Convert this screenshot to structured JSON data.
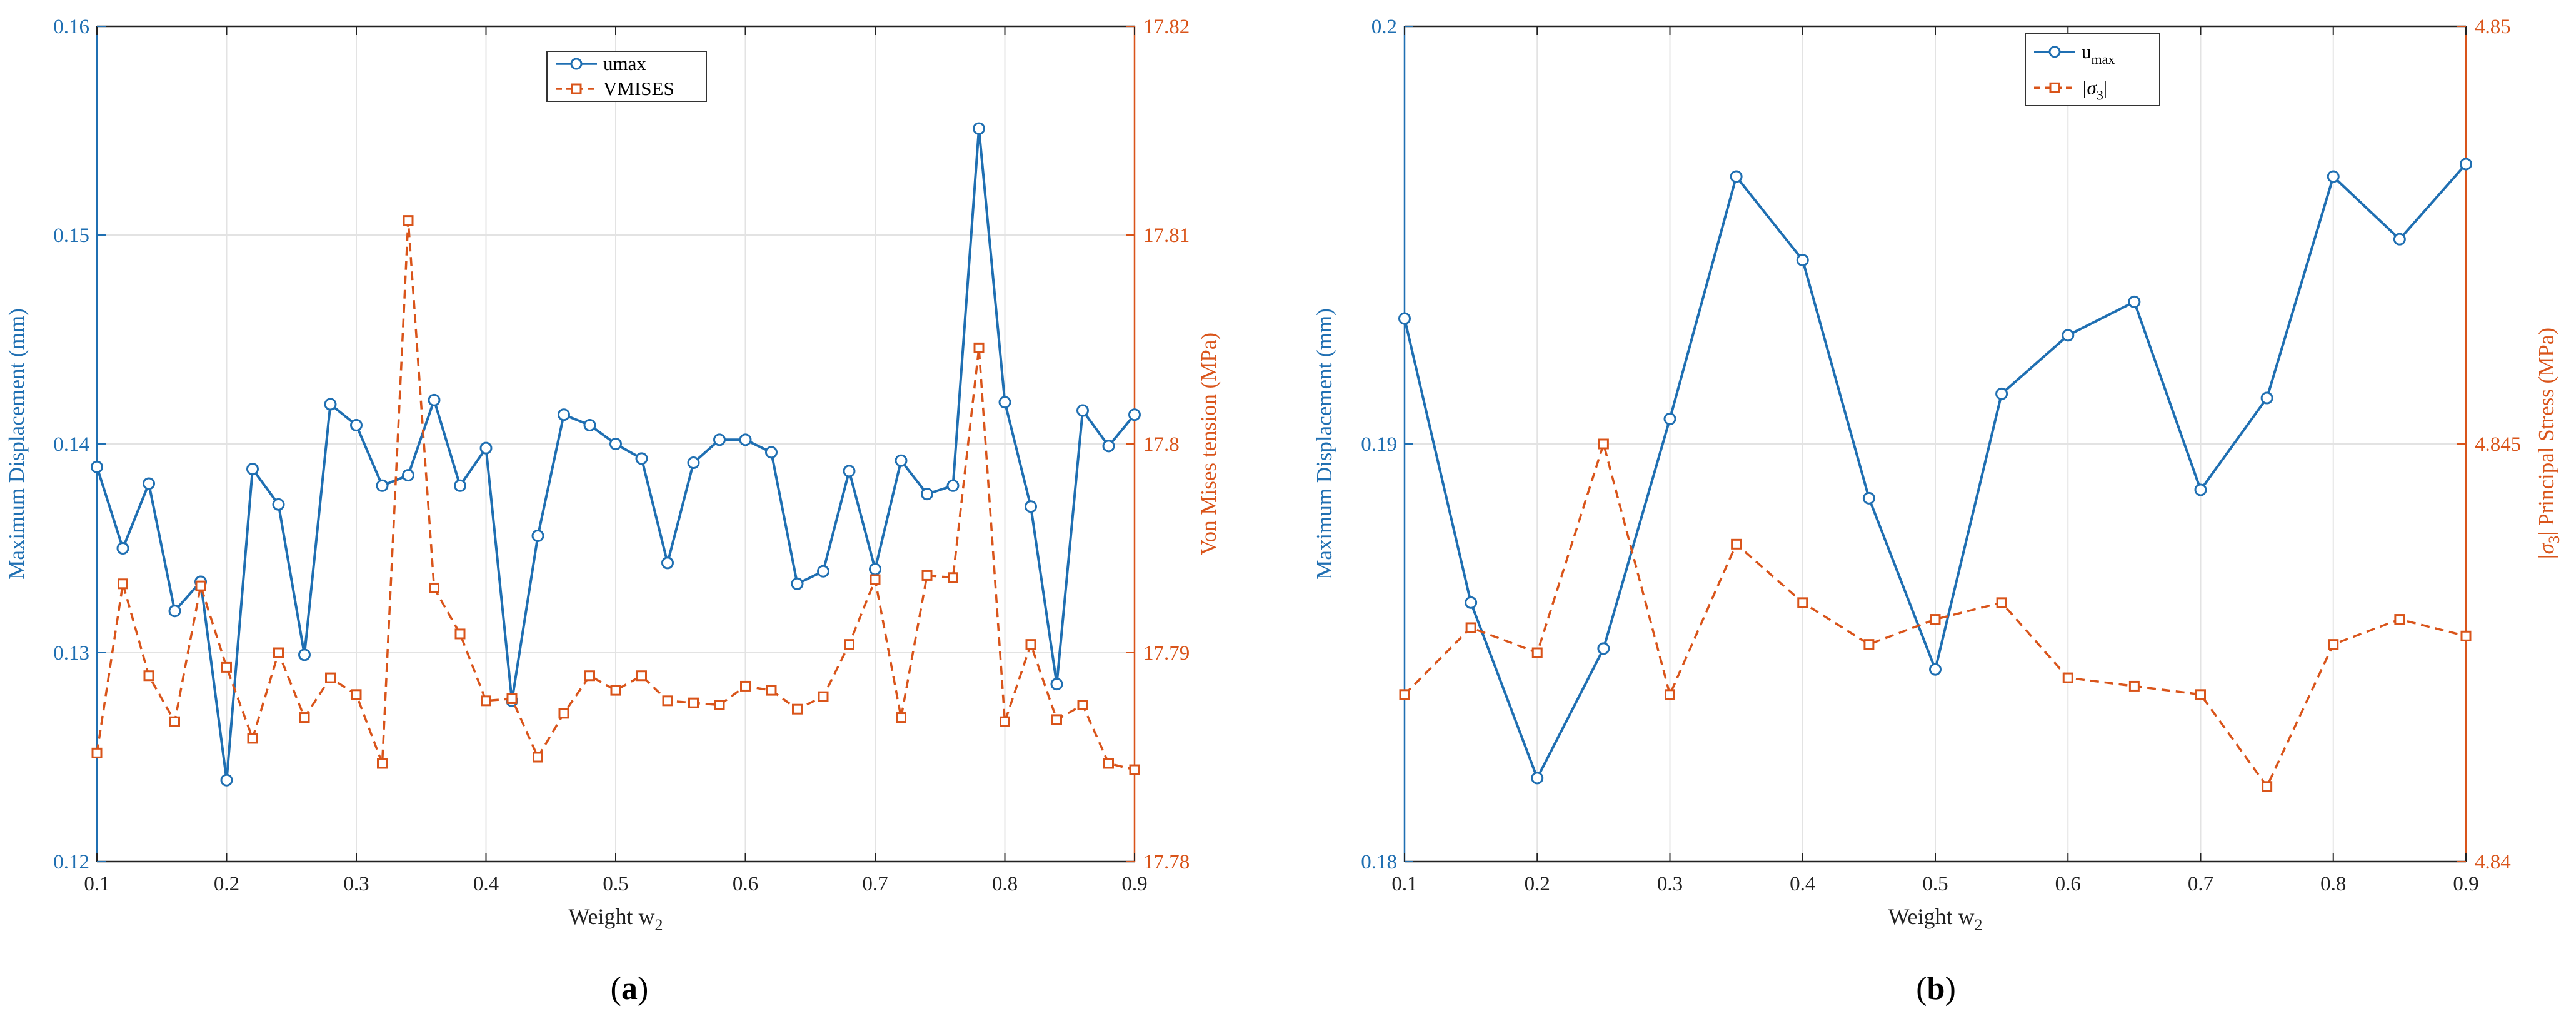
{
  "colors": {
    "left_axis": "#1f6fb2",
    "right_axis": "#d9541a",
    "axes": "#222222",
    "grid": "#e3e3e3"
  },
  "chart_data": [
    {
      "panel_label": "a",
      "type": "line",
      "xlabel": "Weight w",
      "xlabel_sub": "2",
      "x_ticks": [
        "0.1",
        "0.2",
        "0.3",
        "0.4",
        "0.5",
        "0.6",
        "0.7",
        "0.8",
        "0.9"
      ],
      "xlim": [
        0.1,
        0.9
      ],
      "y_left": {
        "label": "Maximum Displacement (mm)",
        "lim": [
          0.12,
          0.16
        ],
        "ticks": [
          "0.12",
          "0.13",
          "0.14",
          "0.15",
          "0.16"
        ],
        "tick_values": [
          0.12,
          0.13,
          0.14,
          0.15,
          0.16
        ]
      },
      "y_right": {
        "label": "Von Mises tension (MPa)",
        "lim": [
          17.78,
          17.82
        ],
        "ticks": [
          "17.78",
          "17.79",
          "17.8",
          "17.81",
          "17.82"
        ],
        "tick_values": [
          17.78,
          17.79,
          17.8,
          17.81,
          17.82
        ]
      },
      "grid": true,
      "legend_position": "top-center",
      "series": [
        {
          "name": "umax",
          "axis": "left",
          "style": "solid-circle",
          "x": [
            0.1,
            0.12,
            0.14,
            0.16,
            0.18,
            0.2,
            0.22,
            0.24,
            0.26,
            0.28,
            0.3,
            0.32,
            0.34,
            0.36,
            0.38,
            0.4,
            0.42,
            0.44,
            0.46,
            0.48,
            0.5,
            0.52,
            0.54,
            0.56,
            0.58,
            0.6,
            0.62,
            0.64,
            0.66,
            0.68,
            0.7,
            0.72,
            0.74,
            0.76,
            0.78,
            0.8,
            0.82,
            0.84,
            0.86,
            0.88,
            0.9
          ],
          "y": [
            0.1389,
            0.135,
            0.1381,
            0.132,
            0.1334,
            0.1239,
            0.1388,
            0.1371,
            0.1299,
            0.1419,
            0.1409,
            0.138,
            0.1385,
            0.1421,
            0.138,
            0.1398,
            0.1277,
            0.1356,
            0.1414,
            0.1409,
            0.14,
            0.1393,
            0.1343,
            0.1391,
            0.1402,
            0.1402,
            0.1396,
            0.1333,
            0.1339,
            0.1387,
            0.134,
            0.1392,
            0.1376,
            0.138,
            0.1551,
            0.142,
            0.137,
            0.1285,
            0.1416,
            0.1399,
            0.1414
          ]
        },
        {
          "name": "VMISES",
          "axis": "right",
          "style": "dashed-square",
          "x": [
            0.1,
            0.12,
            0.14,
            0.16,
            0.18,
            0.2,
            0.22,
            0.24,
            0.26,
            0.28,
            0.3,
            0.32,
            0.34,
            0.36,
            0.38,
            0.4,
            0.42,
            0.44,
            0.46,
            0.48,
            0.5,
            0.52,
            0.54,
            0.56,
            0.58,
            0.6,
            0.62,
            0.64,
            0.66,
            0.68,
            0.7,
            0.72,
            0.74,
            0.76,
            0.78,
            0.8,
            0.82,
            0.84,
            0.86,
            0.88,
            0.9
          ],
          "y": [
            17.7852,
            17.7933,
            17.7889,
            17.7867,
            17.7932,
            17.7893,
            17.7859,
            17.79,
            17.7869,
            17.7888,
            17.788,
            17.7847,
            17.8107,
            17.7931,
            17.7909,
            17.7877,
            17.7878,
            17.785,
            17.7871,
            17.7889,
            17.7882,
            17.7889,
            17.7877,
            17.7876,
            17.7875,
            17.7884,
            17.7882,
            17.7873,
            17.7879,
            17.7904,
            17.7935,
            17.7869,
            17.7937,
            17.7936,
            17.8046,
            17.7867,
            17.7904,
            17.7868,
            17.7875,
            17.7847,
            17.7844
          ]
        }
      ]
    },
    {
      "panel_label": "b",
      "type": "line",
      "xlabel": "Weight w",
      "xlabel_sub": "2",
      "x_ticks": [
        "0.1",
        "0.2",
        "0.3",
        "0.4",
        "0.5",
        "0.6",
        "0.7",
        "0.8",
        "0.9"
      ],
      "xlim": [
        0.1,
        0.9
      ],
      "y_left": {
        "label": "Maximum Displacement (mm)",
        "lim": [
          0.18,
          0.2
        ],
        "ticks": [
          "0.18",
          "0.19",
          "0.2"
        ],
        "tick_values": [
          0.18,
          0.19,
          0.2
        ]
      },
      "y_right": {
        "label": "|σ3| Principal Stress (MPa)",
        "label_pre": "|σ",
        "label_sub": "3",
        "label_post": "| Principal Stress (MPa)",
        "lim": [
          4.84,
          4.85
        ],
        "ticks": [
          "4.84",
          "4.845",
          "4.85"
        ],
        "tick_values": [
          4.84,
          4.845,
          4.85
        ]
      },
      "grid": true,
      "legend_position": "top-center",
      "series": [
        {
          "name": "umax",
          "name_base": "u",
          "name_sub": "max",
          "axis": "left",
          "style": "solid-circle",
          "x": [
            0.1,
            0.15,
            0.2,
            0.25,
            0.3,
            0.35,
            0.4,
            0.45,
            0.5,
            0.55,
            0.6,
            0.65,
            0.7,
            0.75,
            0.8,
            0.85,
            0.9
          ],
          "y": [
            0.193,
            0.1862,
            0.182,
            0.1851,
            0.1906,
            0.1964,
            0.1944,
            0.1887,
            0.1846,
            0.1912,
            0.1926,
            0.1934,
            0.1889,
            0.1911,
            0.1964,
            0.1949,
            0.1967
          ]
        },
        {
          "name": "|σ3|",
          "name_pre": "|σ",
          "name_sub": "3",
          "name_post": "|",
          "axis": "right",
          "style": "dashed-square",
          "x": [
            0.1,
            0.15,
            0.2,
            0.25,
            0.3,
            0.35,
            0.4,
            0.45,
            0.5,
            0.55,
            0.6,
            0.65,
            0.7,
            0.75,
            0.8,
            0.85,
            0.9
          ],
          "y": [
            4.842,
            4.8428,
            4.8425,
            4.845,
            4.842,
            4.8438,
            4.8431,
            4.8426,
            4.8429,
            4.8431,
            4.8422,
            4.8421,
            4.842,
            4.8409,
            4.8426,
            4.8429,
            4.8427
          ]
        }
      ]
    }
  ]
}
